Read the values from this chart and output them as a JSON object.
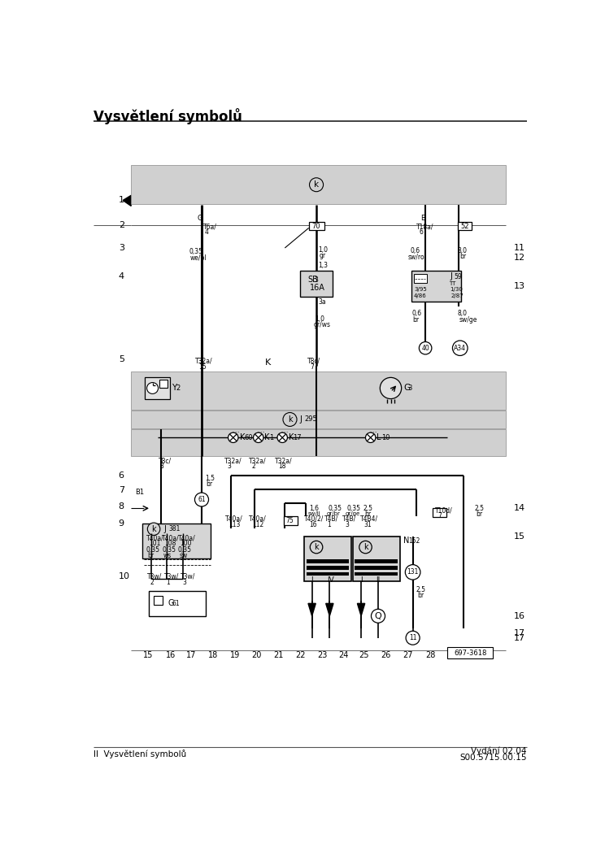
{
  "title": "Vysvětlení symbolů",
  "footer_left": "II  Vysvětlení symbolů",
  "footer_right1": "Vydání 02.04",
  "footer_right2": "S00.5715.00.15",
  "bg_color": "#ffffff"
}
